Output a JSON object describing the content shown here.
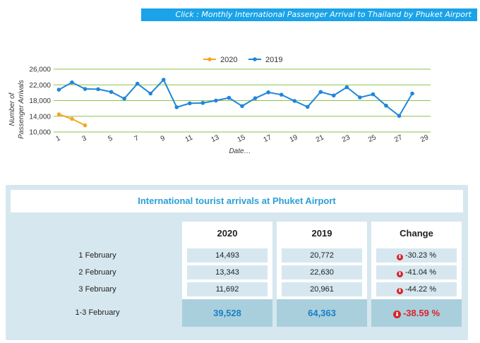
{
  "banner": {
    "text": "Click : Monthly International Passenger Arrival to Thailand by Phuket Airport"
  },
  "chart_data": {
    "type": "line",
    "title": "",
    "xlabel": "Date…",
    "ylabel": "Number of Passenger Arrivals",
    "ylim": [
      10000,
      26000
    ],
    "yticks": [
      "10,000",
      "14,000",
      "18,000",
      "22,000",
      "26,000"
    ],
    "xticks": [
      "1",
      "3",
      "5",
      "7",
      "9",
      "11",
      "13",
      "15",
      "17",
      "19",
      "21",
      "23",
      "25",
      "27",
      "29"
    ],
    "legend_position": "top",
    "grid": true,
    "series": [
      {
        "name": "2020",
        "color": "#f5a623",
        "x": [
          1,
          2,
          3
        ],
        "values": [
          14493,
          13343,
          11692
        ]
      },
      {
        "name": "2019",
        "color": "#1f86d9",
        "x": [
          1,
          2,
          3,
          4,
          5,
          6,
          7,
          8,
          9,
          10,
          11,
          12,
          13,
          14,
          15,
          16,
          17,
          18,
          19,
          20,
          21,
          22,
          23,
          24,
          25,
          26,
          27,
          28
        ],
        "values": [
          20772,
          22630,
          20961,
          20900,
          20200,
          18500,
          22300,
          19800,
          23300,
          16300,
          17300,
          17400,
          18000,
          18700,
          16600,
          18600,
          20100,
          19500,
          17900,
          16400,
          20200,
          19300,
          21400,
          18800,
          19600,
          16700,
          14100,
          19800
        ]
      }
    ]
  },
  "table": {
    "title": "International tourist arrivals at Phuket Airport",
    "headers": {
      "y2020": "2020",
      "y2019": "2019",
      "change": "Change"
    },
    "rows": [
      {
        "label": "1 February",
        "y2020": "14,493",
        "y2019": "20,772",
        "change": "-30.23 %"
      },
      {
        "label": "2 February",
        "y2020": "13,343",
        "y2019": "22,630",
        "change": "-41.04 %"
      },
      {
        "label": "3 February",
        "y2020": "11,692",
        "y2019": "20,961",
        "change": "-44.22 %"
      }
    ],
    "total": {
      "label": "1-3 February",
      "y2020": "39,528",
      "y2019": "64,363",
      "change": "-38.59 %"
    },
    "down_icon_glyph": "⬇",
    "down_icon_color": "#d8232a"
  }
}
